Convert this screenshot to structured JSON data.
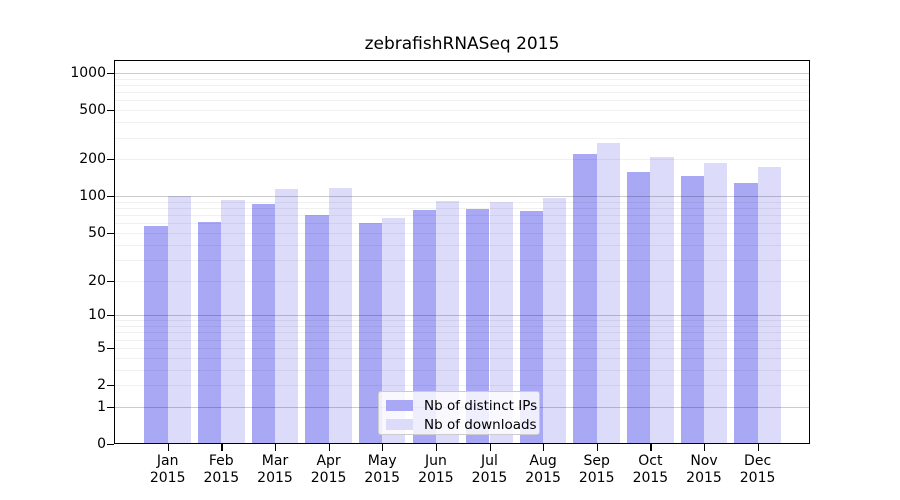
{
  "title": "zebrafishRNASeq 2015",
  "chart_data": {
    "type": "bar",
    "title": "zebrafishRNASeq 2015",
    "categories": [
      "Jan",
      "Feb",
      "Mar",
      "Apr",
      "May",
      "Jun",
      "Jul",
      "Aug",
      "Sep",
      "Oct",
      "Nov",
      "Dec"
    ],
    "year_label": "2015",
    "series": [
      {
        "name": "Nb of distinct IPs",
        "color": "#a8a8f5",
        "values": [
          57,
          61,
          86,
          70,
          60,
          77,
          78,
          75,
          222,
          157,
          146,
          128
        ]
      },
      {
        "name": "Nb of downloads",
        "color": "#dcdcfa",
        "values": [
          100,
          93,
          114,
          116,
          66,
          91,
          90,
          96,
          273,
          208,
          186,
          174
        ]
      }
    ],
    "xlabel": "",
    "ylabel": "",
    "y_scale": "log1p",
    "y_ticks": [
      0,
      1,
      2,
      5,
      10,
      20,
      50,
      100,
      200,
      500,
      1000
    ],
    "minor_gridlines": [
      2,
      3,
      4,
      5,
      6,
      7,
      8,
      9,
      20,
      30,
      40,
      50,
      60,
      70,
      80,
      90,
      200,
      300,
      400,
      500,
      600,
      700,
      800,
      900
    ],
    "major_gridlines": [
      1,
      10,
      100,
      1000
    ],
    "ylim": [
      0,
      1200
    ],
    "grid": "horizontal",
    "legend_position": "inside lower-center",
    "colors": {
      "frame": "#000000",
      "major_grid": "#cdcdcd",
      "minor_grid": "#f0f0f0",
      "legend_border": "#cccccc",
      "background": "#ffffff"
    }
  }
}
